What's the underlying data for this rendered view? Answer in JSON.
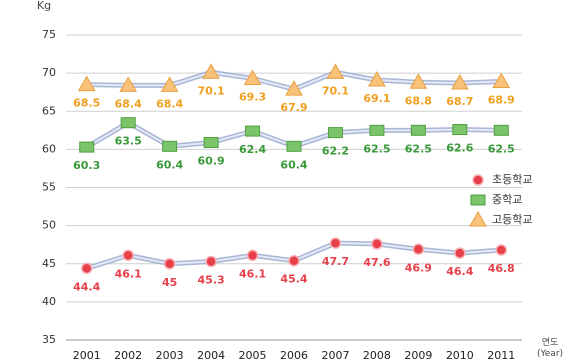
{
  "chart_data": {
    "type": "line",
    "y_label": "Kg",
    "x_label": "연도 (Year)",
    "categories": [
      "2001",
      "2002",
      "2003",
      "2004",
      "2005",
      "2006",
      "2007",
      "2008",
      "2009",
      "2010",
      "2011"
    ],
    "series": [
      {
        "name": "초등학교",
        "color": "#e8404a",
        "marker": "circle",
        "values": [
          44.4,
          46.1,
          45,
          45.3,
          46.1,
          45.4,
          47.7,
          47.6,
          46.9,
          46.4,
          46.8
        ]
      },
      {
        "name": "중학교",
        "color": "#3a9a3a",
        "marker": "square",
        "values": [
          60.3,
          63.5,
          60.4,
          60.9,
          62.4,
          60.4,
          62.2,
          62.5,
          62.5,
          62.6,
          62.5
        ]
      },
      {
        "name": "고등학교",
        "color": "#f0a020",
        "marker": "triangle",
        "values": [
          68.5,
          68.4,
          68.4,
          70.1,
          69.3,
          67.9,
          70.1,
          69.1,
          68.8,
          68.7,
          68.9
        ]
      }
    ],
    "ylim": [
      35,
      75
    ],
    "yticks": [
      35,
      40,
      45,
      50,
      55,
      60,
      65,
      70,
      75
    ],
    "grid": true
  }
}
